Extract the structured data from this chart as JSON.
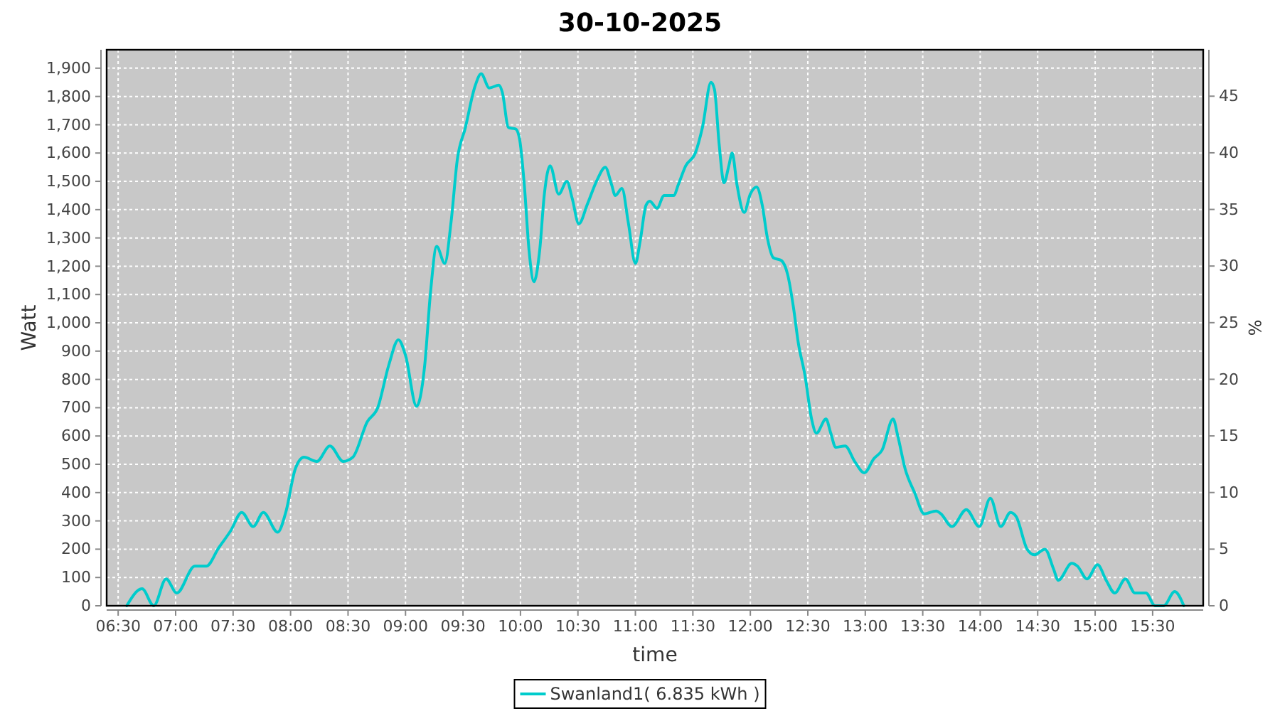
{
  "chart_data": {
    "type": "line",
    "title": "30-10-2025",
    "xlabel": "time",
    "ylabel": "Watt",
    "y2label": "%",
    "xlim": [
      6.4,
      15.94
    ],
    "xticks": [
      {
        "value": 6.5,
        "label": "06:30"
      },
      {
        "value": 7,
        "label": "07:00"
      },
      {
        "value": 7.5,
        "label": "07:30"
      },
      {
        "value": 8,
        "label": "08:00"
      },
      {
        "value": 8.5,
        "label": "08:30"
      },
      {
        "value": 9,
        "label": "09:00"
      },
      {
        "value": 9.5,
        "label": "09:30"
      },
      {
        "value": 10,
        "label": "10:00"
      },
      {
        "value": 10.5,
        "label": "10:30"
      },
      {
        "value": 11,
        "label": "11:00"
      },
      {
        "value": 11.5,
        "label": "11:30"
      },
      {
        "value": 12,
        "label": "12:00"
      },
      {
        "value": 12.5,
        "label": "12:30"
      },
      {
        "value": 13,
        "label": "13:00"
      },
      {
        "value": 13.5,
        "label": "13:30"
      },
      {
        "value": 14,
        "label": "14:00"
      },
      {
        "value": 14.5,
        "label": "14:30"
      },
      {
        "value": 15,
        "label": "15:00"
      },
      {
        "value": 15.5,
        "label": "15:30"
      }
    ],
    "ylim": [
      0,
      1965
    ],
    "yticks": [
      0,
      100,
      200,
      300,
      400,
      500,
      600,
      700,
      800,
      900,
      {
        "value": 1000,
        "label": "1,000"
      },
      {
        "value": 1100,
        "label": "1,100"
      },
      {
        "value": 1200,
        "label": "1,200"
      },
      {
        "value": 1300,
        "label": "1,300"
      },
      {
        "value": 1400,
        "label": "1,400"
      },
      {
        "value": 1500,
        "label": "1,500"
      },
      {
        "value": 1600,
        "label": "1,600"
      },
      {
        "value": 1700,
        "label": "1,700"
      },
      {
        "value": 1800,
        "label": "1,800"
      },
      {
        "value": 1900,
        "label": "1,900"
      }
    ],
    "y2lim": [
      0,
      49.1
    ],
    "y2ticks": [
      0,
      5,
      10,
      15,
      20,
      25,
      30,
      35,
      40,
      45
    ],
    "grid": true,
    "legend": "bottom",
    "series": [
      {
        "name": "Swanland1( 6.835 kWh )",
        "color": "#00cccc",
        "x": [
          6.575,
          6.708,
          6.81,
          6.917,
          7.01,
          7.167,
          7.267,
          7.375,
          7.479,
          7.575,
          7.675,
          7.763,
          7.888,
          7.958,
          8.042,
          8.117,
          8.229,
          8.342,
          8.458,
          8.542,
          8.667,
          8.758,
          8.854,
          8.938,
          9.0,
          9.096,
          9.167,
          9.217,
          9.271,
          9.342,
          9.396,
          9.45,
          9.521,
          9.604,
          9.658,
          9.729,
          9.813,
          9.842,
          9.896,
          9.958,
          9.992,
          10.033,
          10.075,
          10.117,
          10.167,
          10.208,
          10.258,
          10.333,
          10.404,
          10.45,
          10.508,
          10.583,
          10.667,
          10.738,
          10.792,
          10.825,
          10.883,
          10.938,
          11.0,
          11.042,
          11.092,
          11.125,
          11.188,
          11.25,
          11.333,
          11.375,
          11.438,
          11.521,
          11.583,
          11.658,
          11.688,
          11.729,
          11.771,
          11.813,
          11.842,
          11.883,
          11.946,
          12.0,
          12.054,
          12.104,
          12.146,
          12.2,
          12.271,
          12.325,
          12.375,
          12.417,
          12.475,
          12.533,
          12.575,
          12.658,
          12.7,
          12.742,
          12.825,
          12.908,
          12.992,
          13.075,
          13.146,
          13.242,
          13.283,
          13.346,
          13.429,
          13.513,
          13.617,
          13.658,
          13.754,
          13.879,
          13.992,
          14.088,
          14.179,
          14.263,
          14.313,
          14.408,
          14.471,
          14.563,
          14.638,
          14.679,
          14.796,
          14.846,
          14.929,
          15.021,
          15.096,
          15.171,
          15.263,
          15.346,
          15.442,
          15.521,
          15.596,
          15.692,
          15.771
        ],
        "values": [
          0,
          60,
          0,
          95,
          45,
          140,
          140,
          205,
          265,
          330,
          280,
          330,
          260,
          330,
          485,
          525,
          510,
          565,
          510,
          525,
          650,
          700,
          850,
          940,
          885,
          705,
          850,
          1105,
          1270,
          1210,
          1355,
          1575,
          1690,
          1835,
          1880,
          1830,
          1840,
          1815,
          1690,
          1685,
          1650,
          1490,
          1255,
          1145,
          1255,
          1455,
          1555,
          1455,
          1500,
          1440,
          1350,
          1420,
          1505,
          1550,
          1490,
          1450,
          1475,
          1355,
          1210,
          1290,
          1415,
          1430,
          1405,
          1450,
          1450,
          1490,
          1555,
          1600,
          1690,
          1850,
          1825,
          1630,
          1495,
          1555,
          1600,
          1490,
          1390,
          1455,
          1480,
          1415,
          1305,
          1230,
          1220,
          1170,
          1055,
          930,
          815,
          660,
          610,
          660,
          610,
          560,
          565,
          510,
          470,
          520,
          550,
          660,
          600,
          485,
          400,
          325,
          335,
          325,
          280,
          340,
          280,
          380,
          280,
          330,
          315,
          200,
          180,
          200,
          130,
          90,
          150,
          140,
          95,
          145,
          90,
          45,
          95,
          45,
          45,
          0,
          0,
          50,
          0
        ]
      }
    ]
  }
}
